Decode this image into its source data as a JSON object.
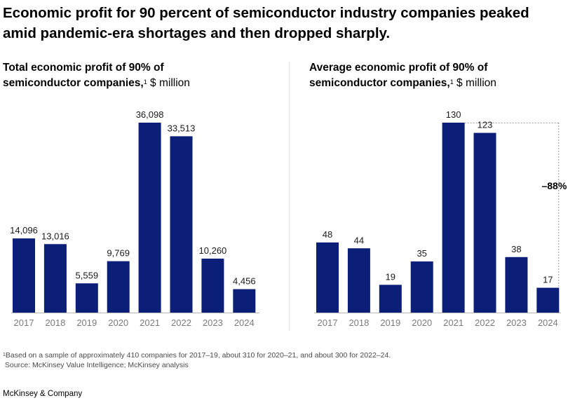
{
  "title": "Economic profit for 90 percent of semiconductor industry companies peaked amid pandemic-era shortages and then dropped sharply.",
  "left_chart": {
    "title_line1": "Total economic profit of 90% of",
    "title_line2": "semiconductor companies,",
    "footnote_mark": "1",
    "unit": "$ million"
  },
  "right_chart": {
    "title_line1": "Average economic profit of 90% of",
    "title_line2": "semiconductor companies,",
    "footnote_mark": "1",
    "unit": "$ million"
  },
  "chart_data": [
    {
      "type": "bar",
      "title": "Total economic profit of 90% of semiconductor companies, $ million",
      "categories": [
        "2017",
        "2018",
        "2019",
        "2020",
        "2021",
        "2022",
        "2023",
        "2024"
      ],
      "values": [
        14096,
        13016,
        5559,
        9769,
        36098,
        33513,
        10260,
        4456
      ],
      "value_labels": [
        "14,096",
        "13,016",
        "5,559",
        "9,769",
        "36,098",
        "33,513",
        "10,260",
        "4,456"
      ],
      "color": "#0b1f78"
    },
    {
      "type": "bar",
      "title": "Average economic profit of 90% of semiconductor companies, $ million",
      "categories": [
        "2017",
        "2018",
        "2019",
        "2020",
        "2021",
        "2022",
        "2023",
        "2024"
      ],
      "values": [
        48,
        44,
        19,
        35,
        130,
        123,
        38,
        17
      ],
      "value_labels": [
        "48",
        "44",
        "19",
        "35",
        "130",
        "123",
        "38",
        "17"
      ],
      "color": "#0b1f78",
      "annotation": "–88%"
    }
  ],
  "footnote": {
    "mark": "1",
    "text": "Based on a sample of approximately 410 companies for 2017–19, about 310 for 2020–21, and about 300 for 2022–24.",
    "source": "Source: McKinsey Value Intelligence; McKinsey analysis"
  },
  "brand": "McKinsey & Company"
}
